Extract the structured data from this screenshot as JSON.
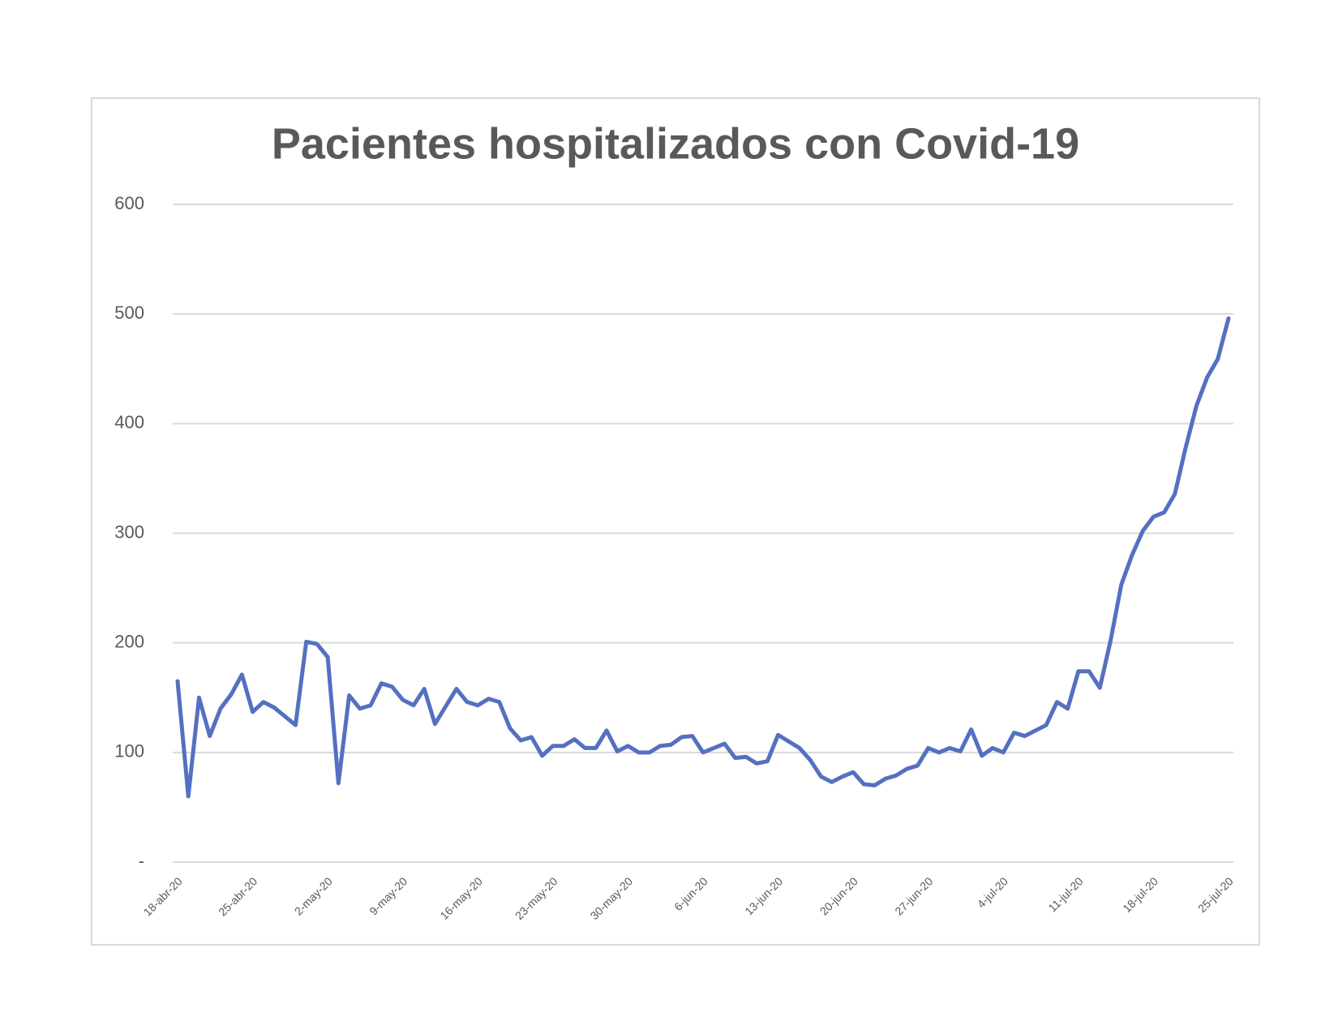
{
  "chart_data": {
    "type": "line",
    "title": "Pacientes hospitalizados con Covid-19",
    "categories": [
      "18-abr-20",
      null,
      null,
      null,
      null,
      null,
      null,
      "25-abr-20",
      null,
      null,
      null,
      null,
      null,
      null,
      "2-may-20",
      null,
      null,
      null,
      null,
      null,
      null,
      "9-may-20",
      null,
      null,
      null,
      null,
      null,
      null,
      "16-may-20",
      null,
      null,
      null,
      null,
      null,
      null,
      "23-may-20",
      null,
      null,
      null,
      null,
      null,
      null,
      "30-may-20",
      null,
      null,
      null,
      null,
      null,
      null,
      "6-jun-20",
      null,
      null,
      null,
      null,
      null,
      null,
      "13-jun-20",
      null,
      null,
      null,
      null,
      null,
      null,
      "20-jun-20",
      null,
      null,
      null,
      null,
      null,
      null,
      "27-jun-20",
      null,
      null,
      null,
      null,
      null,
      null,
      "4-jul-20",
      null,
      null,
      null,
      null,
      null,
      null,
      "11-jul-20",
      null,
      null,
      null,
      null,
      null,
      null,
      "18-jul-20",
      null,
      null,
      null,
      null,
      null,
      null,
      "25-jul-20"
    ],
    "values": [
      165,
      60,
      150,
      115,
      140,
      153,
      171,
      137,
      146,
      141,
      133,
      125,
      201,
      199,
      187,
      72,
      152,
      140,
      143,
      163,
      160,
      148,
      143,
      158,
      126,
      142,
      158,
      146,
      143,
      149,
      146,
      122,
      111,
      114,
      97,
      106,
      106,
      112,
      104,
      104,
      120,
      101,
      106,
      100,
      100,
      106,
      107,
      114,
      115,
      100,
      104,
      108,
      95,
      96,
      90,
      92,
      116,
      110,
      104,
      93,
      78,
      73,
      78,
      82,
      71,
      70,
      76,
      79,
      85,
      88,
      104,
      100,
      104,
      101,
      121,
      97,
      104,
      100,
      118,
      115,
      120,
      125,
      146,
      140,
      174,
      174,
      159,
      202,
      253,
      280,
      302,
      315,
      319,
      336,
      378,
      416,
      442,
      459,
      496
    ],
    "color": "#5470c0",
    "ylim": [
      0,
      600
    ],
    "yticks": [
      {
        "value": 0,
        "label": "-"
      },
      100,
      200,
      300,
      400,
      500,
      600
    ],
    "grid": true
  }
}
